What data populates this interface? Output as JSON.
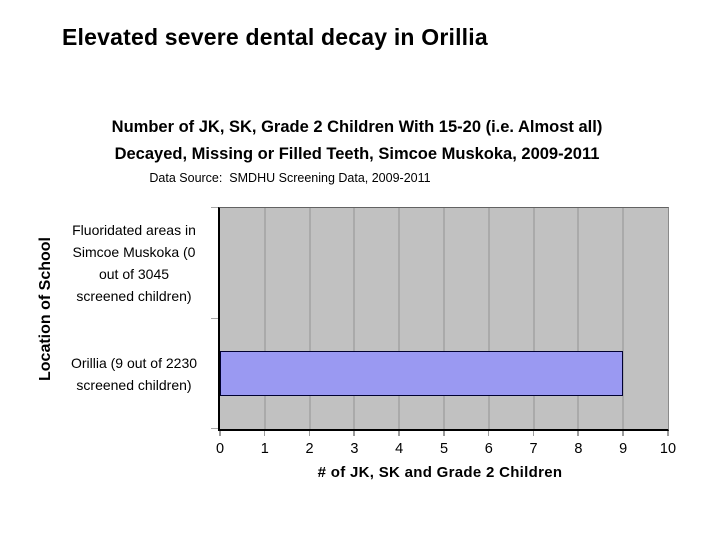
{
  "slide": {
    "title": "Elevated severe dental decay in Orillia"
  },
  "chart_data": {
    "type": "bar",
    "orientation": "horizontal",
    "title": "Number of JK, SK, Grade 2 Children With 15-20 (i.e. Almost all)\nDecayed, Missing or Filled Teeth, Simcoe Muskoka, 2009-2011",
    "subtitle": "Data Source:  SMDHU Screening Data, 2009-2011",
    "ylabel": "Location of School",
    "xlabel": "# of JK, SK and Grade 2 Children",
    "categories": [
      "Fluoridated areas in\nSimcoe Muskoka (0\nout of 3045\nscreened children)",
      "Orillia (9 out of 2230\nscreened children)"
    ],
    "values": [
      0,
      9
    ],
    "xlim": [
      0,
      10
    ],
    "xticks": [
      0,
      1,
      2,
      3,
      4,
      5,
      6,
      7,
      8,
      9,
      10
    ],
    "grid": true,
    "legend_position": "none",
    "colors": {
      "background": "#ffffff",
      "plot_bg": "#c1c1c1",
      "gridline": "#aaaaaa",
      "bar_fill": "#9a99f2",
      "bar_border": "#000030",
      "axis": "#000000",
      "tick": "#9c9c9c",
      "text": "#000000"
    }
  }
}
